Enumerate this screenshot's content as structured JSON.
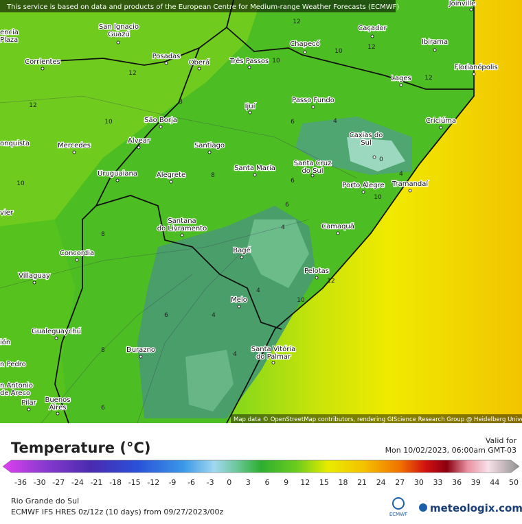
{
  "notice": "This service is based on data and products of the European Centre for Medium-range Weather Forecasts (ECMWF)",
  "attribution": "Map data © OpenStreetMap contributors, rendering GIScience Research Group @ Heidelberg University",
  "cities": [
    [
      "Joinville"
    ],
    [
      "encia",
      "Plaza"
    ],
    [
      "San Ignacio",
      "Guazú"
    ],
    [
      "Caçador"
    ],
    [
      "Chapecó"
    ],
    [
      "Ibirama"
    ],
    [
      "Corrientes"
    ],
    [
      "Posadas"
    ],
    [
      "Oberá"
    ],
    [
      "Três Passos"
    ],
    [
      "Florianópolis"
    ],
    [
      "Lages"
    ],
    [
      "Passo Fundo"
    ],
    [
      "Ijuí"
    ],
    [
      "São Borja"
    ],
    [
      "Criciúma"
    ],
    [
      "Caxias do",
      "Sul"
    ],
    [
      "onquista"
    ],
    [
      "Mercedes"
    ],
    [
      "Alvear"
    ],
    [
      "Santiago"
    ],
    [
      "Santa Maria"
    ],
    [
      "Santa Cruz",
      "do Sul"
    ],
    [
      "Uruguaiana"
    ],
    [
      "Alegrete"
    ],
    [
      "Porto Alegre"
    ],
    [
      "Tramandaí"
    ],
    [
      "vier"
    ],
    [
      "Camaquã"
    ],
    [
      "Santana",
      "do Livramento"
    ],
    [
      "Concordia"
    ],
    [
      "Bagé"
    ],
    [
      "Villaguay"
    ],
    [
      "Pelotas"
    ],
    [
      "Melo"
    ],
    [
      "ión"
    ],
    [
      "Gualeguaychú"
    ],
    [
      "Durazno"
    ],
    [
      "Santa Vitória",
      "do Palmar"
    ],
    [
      "n Pedro"
    ],
    [
      "n Antonio",
      "de Areco"
    ],
    [
      "Pilar"
    ],
    [
      "Buenos",
      "Aires"
    ]
  ],
  "contour_labels": [
    12,
    10,
    12,
    12,
    10,
    12,
    12,
    10,
    8,
    6,
    4,
    0,
    4,
    8,
    10,
    6,
    6,
    10,
    4,
    8,
    12,
    10,
    4,
    6,
    4,
    8,
    4,
    6
  ],
  "legend": {
    "title": "Temperature (°C)",
    "ticks": [
      -36,
      -30,
      -27,
      -24,
      -21,
      -18,
      -15,
      -12,
      -9,
      -6,
      -3,
      0,
      3,
      6,
      9,
      12,
      15,
      18,
      21,
      24,
      27,
      30,
      33,
      36,
      39,
      44,
      50
    ]
  },
  "valid": {
    "label": "Valid for",
    "time": "Mon 10/02/2023, 06:00am GMT-03"
  },
  "region": "Rio Grande do Sul",
  "model": "ECMWF IFS HRES 0z/12z (10 days) from 09/27/2023/00z",
  "logos": [
    "ECMWF",
    "meteologix.com"
  ]
}
